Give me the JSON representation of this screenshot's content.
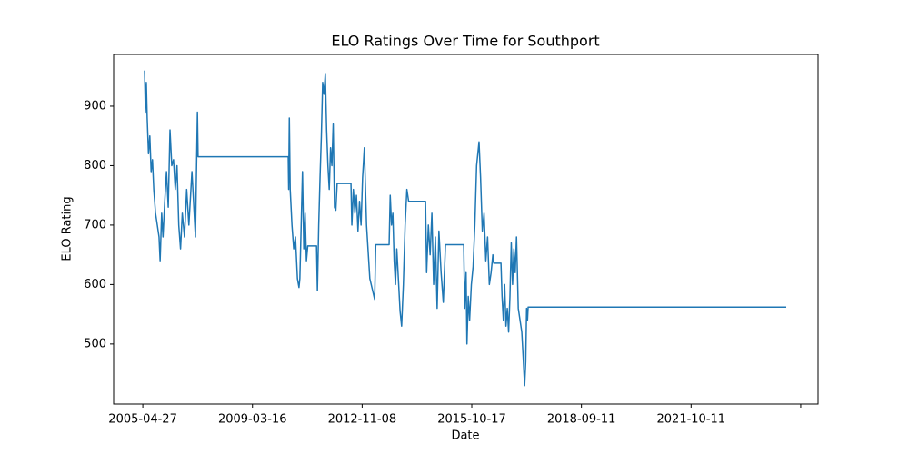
{
  "chart_data": {
    "type": "line",
    "title": "ELO Ratings Over Time for Southport",
    "x_label": "Date",
    "y_label": "ELO Rating",
    "xlim": [
      -133,
      3079
    ],
    "ylim": [
      399,
      987
    ],
    "xticks": [
      {
        "value": 0,
        "label": "2005-04-27"
      },
      {
        "value": 500,
        "label": "2009-03-16"
      },
      {
        "value": 1000,
        "label": "2012-11-08"
      },
      {
        "value": 1500,
        "label": "2015-10-17"
      },
      {
        "value": 2000,
        "label": "2018-09-11"
      },
      {
        "value": 2500,
        "label": "2021-10-11"
      },
      {
        "value": 3000,
        "label": null
      }
    ],
    "yticks": [
      500,
      600,
      700,
      800,
      900
    ],
    "grid": false,
    "series": [
      {
        "name": "Southport",
        "color": "#1f77b4",
        "x": [
          8,
          12,
          16,
          20,
          26,
          32,
          38,
          44,
          50,
          58,
          66,
          74,
          79,
          86,
          92,
          100,
          108,
          116,
          124,
          132,
          140,
          148,
          156,
          164,
          172,
          180,
          190,
          200,
          210,
          224,
          240,
          249,
          252,
          663,
          665,
          668,
          672,
          680,
          688,
          696,
          705,
          712,
          716,
          722,
          728,
          734,
          740,
          746,
          752,
          792,
          796,
          802,
          808,
          814,
          820,
          826,
          832,
          838,
          844,
          850,
          856,
          862,
          868,
          874,
          880,
          886,
          949,
          953,
          960,
          967,
          974,
          981,
          988,
          995,
          1002,
          1010,
          1020,
          1035,
          1057,
          1062,
          1123,
          1128,
          1134,
          1140,
          1146,
          1152,
          1158,
          1173,
          1180,
          1188,
          1196,
          1204,
          1212,
          1289,
          1294,
          1302,
          1310,
          1318,
          1326,
          1334,
          1342,
          1350,
          1360,
          1370,
          1380,
          1463,
          1468,
          1474,
          1478,
          1484,
          1490,
          1498,
          1506,
          1514,
          1522,
          1533,
          1540,
          1548,
          1556,
          1564,
          1572,
          1580,
          1588,
          1596,
          1600,
          1633,
          1638,
          1644,
          1650,
          1656,
          1662,
          1668,
          1674,
          1680,
          1686,
          1692,
          1698,
          1704,
          1712,
          1720,
          1728,
          1734,
          1741,
          1746,
          1750,
          1754,
          1757,
          2934
        ],
        "values": [
          960,
          890,
          940,
          880,
          820,
          850,
          790,
          810,
          760,
          720,
          700,
          680,
          640,
          720,
          680,
          740,
          790,
          730,
          860,
          800,
          810,
          760,
          800,
          700,
          660,
          720,
          680,
          760,
          700,
          790,
          680,
          890,
          815,
          815,
          760,
          880,
          760,
          700,
          660,
          680,
          610,
          595,
          610,
          700,
          790,
          660,
          720,
          640,
          665,
          665,
          590,
          700,
          780,
          850,
          940,
          920,
          955,
          860,
          800,
          760,
          830,
          800,
          870,
          730,
          725,
          770,
          770,
          700,
          760,
          720,
          750,
          690,
          740,
          700,
          780,
          830,
          700,
          610,
          575,
          667,
          667,
          750,
          700,
          720,
          640,
          600,
          660,
          555,
          530,
          600,
          700,
          760,
          740,
          740,
          620,
          700,
          650,
          720,
          600,
          680,
          560,
          690,
          620,
          570,
          667,
          667,
          560,
          620,
          500,
          580,
          540,
          600,
          630,
          700,
          800,
          840,
          780,
          690,
          720,
          640,
          680,
          600,
          620,
          650,
          636,
          636,
          580,
          540,
          600,
          530,
          560,
          520,
          580,
          670,
          600,
          660,
          620,
          680,
          560,
          540,
          520,
          480,
          430,
          470,
          560,
          540,
          562,
          562
        ]
      }
    ]
  }
}
